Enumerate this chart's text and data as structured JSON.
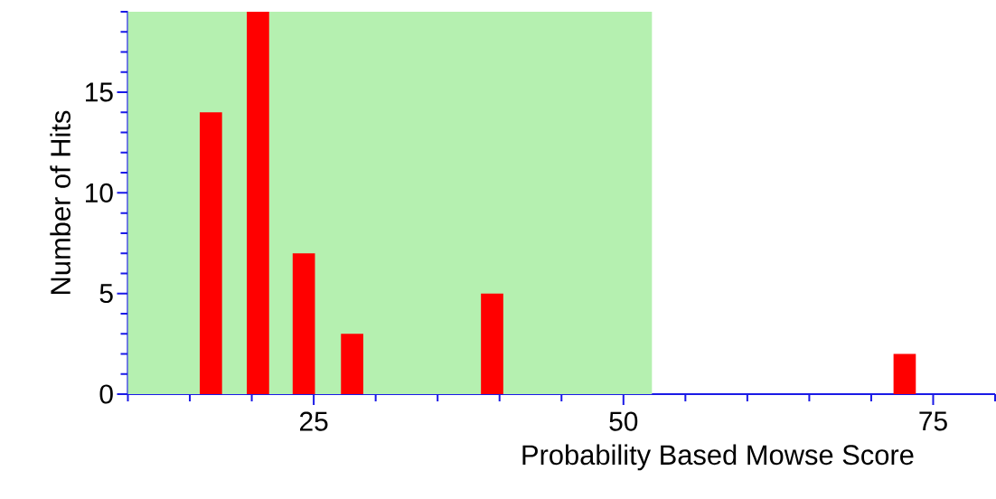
{
  "chart_data": {
    "type": "bar",
    "xlabel": "Probability Based Mowse Score",
    "ylabel": "Number of Hits",
    "x": [
      16.7,
      20.5,
      24.2,
      28.1,
      39.4,
      72.7
    ],
    "values": [
      14,
      19,
      7,
      3,
      5,
      2
    ],
    "color": "#ff0000",
    "xlim": [
      10,
      80
    ],
    "xticks": [
      {
        "value": 10,
        "label": null
      },
      {
        "value": 15,
        "label": null
      },
      {
        "value": 20,
        "label": null
      },
      25,
      {
        "value": 30,
        "label": null
      },
      {
        "value": 35,
        "label": null
      },
      {
        "value": 40,
        "label": null
      },
      {
        "value": 45,
        "label": null
      },
      50,
      {
        "value": 55,
        "label": null
      },
      {
        "value": 60,
        "label": null
      },
      {
        "value": 65,
        "label": null
      },
      {
        "value": 70,
        "label": null
      },
      75,
      {
        "value": 80,
        "label": null
      }
    ],
    "ylim": [
      0,
      19
    ],
    "yticks": [
      0,
      {
        "value": 1,
        "label": null
      },
      {
        "value": 2,
        "label": null
      },
      {
        "value": 3,
        "label": null
      },
      {
        "value": 4,
        "label": null
      },
      5,
      {
        "value": 6,
        "label": null
      },
      {
        "value": 7,
        "label": null
      },
      {
        "value": 8,
        "label": null
      },
      {
        "value": 9,
        "label": null
      },
      10,
      {
        "value": 11,
        "label": null
      },
      {
        "value": 12,
        "label": null
      },
      {
        "value": 13,
        "label": null
      },
      {
        "value": 14,
        "label": null
      },
      15,
      {
        "value": 16,
        "label": null
      },
      {
        "value": 17,
        "label": null
      },
      {
        "value": 18,
        "label": null
      },
      {
        "value": 19,
        "label": null
      }
    ],
    "bands": [
      {
        "axis": "x",
        "from": 10,
        "to": 52.3,
        "color": "#b5f0b0"
      }
    ]
  }
}
